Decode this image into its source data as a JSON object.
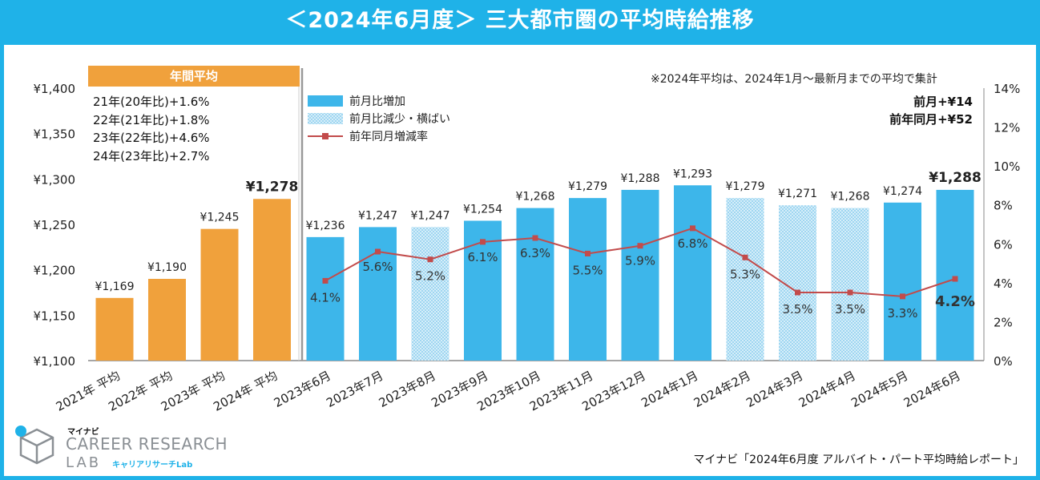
{
  "header": {
    "title": "＜2024年6月度＞ 三大都市圏の平均時給推移"
  },
  "note": "※2024年平均は、2024年1月～最新月までの平均で集計",
  "annual": {
    "header": "年間平均",
    "lines": [
      "21年(20年比)+1.6%",
      "22年(21年比)+1.8%",
      "23年(22年比)+4.6%",
      "24年(23年比)+2.7%"
    ]
  },
  "delta": {
    "mom": "前月+¥14",
    "yoy": "前年同月+¥52"
  },
  "legend": {
    "increase": "前月比増加",
    "decrease": "前月比減少・横ばい",
    "yoy_rate": "前年同月増減率"
  },
  "logo": {
    "brand": "マイナビ",
    "line1": "CAREER RESEARCH",
    "line2": "LAB",
    "kana": "キャリアリサーチLab"
  },
  "source": "マイナビ「2024年6月度 アルバイト・パート平均時給レポート」",
  "colors": {
    "frame": "#1fb2e8",
    "annual_bar": "#f0a13c",
    "increase_bar": "#3db6ea",
    "decrease_bar": "#bfe5f7",
    "line": "#c24b4b"
  },
  "chart_data": {
    "type": "bar",
    "title": "＜2024年6月度＞ 三大都市圏の平均時給推移",
    "left_axis": {
      "min": 1100,
      "max": 1400,
      "ticks": [
        "¥1,100",
        "¥1,150",
        "¥1,200",
        "¥1,250",
        "¥1,300",
        "¥1,350",
        "¥1,400"
      ]
    },
    "right_axis": {
      "min": 0,
      "max": 14,
      "ticks": [
        "0%",
        "2%",
        "4%",
        "6%",
        "8%",
        "10%",
        "12%",
        "14%"
      ]
    },
    "categories": [
      "2021年 平均",
      "2022年 平均",
      "2023年 平均",
      "2024年 平均",
      "2023年6月",
      "2023年7月",
      "2023年8月",
      "2023年9月",
      "2023年10月",
      "2023年11月",
      "2023年12月",
      "2024年1月",
      "2024年2月",
      "2024年3月",
      "2024年4月",
      "2024年5月",
      "2024年6月"
    ],
    "values": [
      1169,
      1190,
      1245,
      1278,
      1236,
      1247,
      1247,
      1254,
      1268,
      1279,
      1288,
      1293,
      1279,
      1271,
      1268,
      1274,
      1288
    ],
    "value_labels": [
      "¥1,169",
      "¥1,190",
      "¥1,245",
      "¥1,278",
      "¥1,236",
      "¥1,247",
      "¥1,247",
      "¥1,254",
      "¥1,268",
      "¥1,279",
      "¥1,288",
      "¥1,293",
      "¥1,279",
      "¥1,271",
      "¥1,268",
      "¥1,274",
      "¥1,288"
    ],
    "bar_kind": [
      "annual",
      "annual",
      "annual",
      "annual",
      "increase",
      "increase",
      "decrease",
      "increase",
      "increase",
      "increase",
      "increase",
      "increase",
      "decrease",
      "decrease",
      "decrease",
      "increase",
      "increase"
    ],
    "yoy_rate": [
      null,
      null,
      null,
      null,
      4.1,
      5.6,
      5.2,
      6.1,
      6.3,
      5.5,
      5.9,
      6.8,
      5.3,
      3.5,
      3.5,
      3.3,
      4.2
    ],
    "yoy_labels": [
      null,
      null,
      null,
      null,
      "4.1%",
      "5.6%",
      "5.2%",
      "6.1%",
      "6.3%",
      "5.5%",
      "5.9%",
      "6.8%",
      "5.3%",
      "3.5%",
      "3.5%",
      "3.3%",
      "4.2%"
    ]
  }
}
